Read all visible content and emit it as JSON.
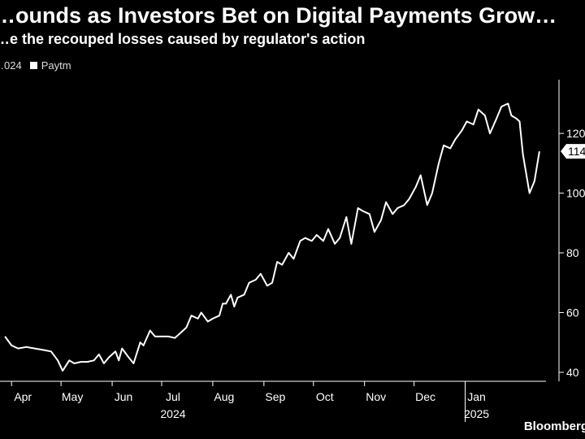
{
  "header": {
    "title": "…ounds as Investors Bet on Digital Payments Grow…",
    "subtitle": "…e the recouped losses caused by regulator's action"
  },
  "legend": {
    "prev_label": "…024",
    "series_label": "Paytm"
  },
  "source": "Bloomberg",
  "colors": {
    "background": "#000000",
    "line": "#ffffff",
    "text": "#ffffff"
  },
  "chart_data": {
    "type": "line",
    "series": [
      {
        "name": "Paytm",
        "points": [
          [
            "2024-03-28",
            52
          ],
          [
            "2024-04-01",
            49
          ],
          [
            "2024-04-05",
            48
          ],
          [
            "2024-04-10",
            48.5
          ],
          [
            "2024-04-15",
            48
          ],
          [
            "2024-04-20",
            47.5
          ],
          [
            "2024-04-25",
            47
          ],
          [
            "2024-04-29",
            44
          ],
          [
            "2024-05-02",
            40.5
          ],
          [
            "2024-05-06",
            44
          ],
          [
            "2024-05-09",
            43
          ],
          [
            "2024-05-13",
            43.5
          ],
          [
            "2024-05-17",
            43.5
          ],
          [
            "2024-05-21",
            44
          ],
          [
            "2024-05-24",
            46
          ],
          [
            "2024-05-27",
            43
          ],
          [
            "2024-05-30",
            45
          ],
          [
            "2024-06-03",
            47
          ],
          [
            "2024-06-05",
            44
          ],
          [
            "2024-06-07",
            48
          ],
          [
            "2024-06-11",
            45
          ],
          [
            "2024-06-14",
            43
          ],
          [
            "2024-06-18",
            50
          ],
          [
            "2024-06-20",
            49
          ],
          [
            "2024-06-24",
            54
          ],
          [
            "2024-06-27",
            52
          ],
          [
            "2024-07-01",
            52
          ],
          [
            "2024-07-05",
            52
          ],
          [
            "2024-07-09",
            51.5
          ],
          [
            "2024-07-12",
            53
          ],
          [
            "2024-07-16",
            55
          ],
          [
            "2024-07-19",
            59
          ],
          [
            "2024-07-23",
            58
          ],
          [
            "2024-07-25",
            60
          ],
          [
            "2024-07-29",
            57
          ],
          [
            "2024-08-01",
            58
          ],
          [
            "2024-08-05",
            59
          ],
          [
            "2024-08-07",
            63
          ],
          [
            "2024-08-09",
            63
          ],
          [
            "2024-08-12",
            66
          ],
          [
            "2024-08-14",
            62
          ],
          [
            "2024-08-16",
            65
          ],
          [
            "2024-08-20",
            66
          ],
          [
            "2024-08-23",
            70
          ],
          [
            "2024-08-27",
            71
          ],
          [
            "2024-08-30",
            73
          ],
          [
            "2024-09-03",
            69
          ],
          [
            "2024-09-06",
            70
          ],
          [
            "2024-09-09",
            77
          ],
          [
            "2024-09-12",
            76
          ],
          [
            "2024-09-16",
            80
          ],
          [
            "2024-09-19",
            78
          ],
          [
            "2024-09-23",
            84
          ],
          [
            "2024-09-26",
            85
          ],
          [
            "2024-09-30",
            84
          ],
          [
            "2024-10-03",
            86
          ],
          [
            "2024-10-07",
            84
          ],
          [
            "2024-10-10",
            88
          ],
          [
            "2024-10-14",
            83
          ],
          [
            "2024-10-17",
            85
          ],
          [
            "2024-10-21",
            92
          ],
          [
            "2024-10-24",
            83
          ],
          [
            "2024-10-28",
            95
          ],
          [
            "2024-10-31",
            94
          ],
          [
            "2024-11-04",
            93
          ],
          [
            "2024-11-07",
            87
          ],
          [
            "2024-11-11",
            91
          ],
          [
            "2024-11-14",
            97
          ],
          [
            "2024-11-18",
            93
          ],
          [
            "2024-11-21",
            95
          ],
          [
            "2024-11-25",
            96
          ],
          [
            "2024-11-28",
            98
          ],
          [
            "2024-12-02",
            102
          ],
          [
            "2024-12-05",
            106
          ],
          [
            "2024-12-09",
            96
          ],
          [
            "2024-12-12",
            100
          ],
          [
            "2024-12-16",
            110
          ],
          [
            "2024-12-19",
            116
          ],
          [
            "2024-12-23",
            115
          ],
          [
            "2024-12-26",
            118
          ],
          [
            "2024-12-30",
            121
          ],
          [
            "2025-01-02",
            124
          ],
          [
            "2025-01-06",
            123
          ],
          [
            "2025-01-09",
            128
          ],
          [
            "2025-01-13",
            126
          ],
          [
            "2025-01-16",
            120
          ],
          [
            "2025-01-20",
            125
          ],
          [
            "2025-01-23",
            129
          ],
          [
            "2025-01-27",
            130
          ],
          [
            "2025-01-29",
            126
          ],
          [
            "2025-02-01",
            125
          ],
          [
            "2025-02-03",
            124
          ],
          [
            "2025-02-05",
            113
          ],
          [
            "2025-02-09",
            100
          ],
          [
            "2025-02-12",
            104
          ],
          [
            "2025-02-15",
            114
          ]
        ]
      }
    ],
    "ylim": [
      37,
      138
    ],
    "xlim": [
      "2024-03-25",
      "2025-02-19"
    ],
    "y_ticks": [
      {
        "value": 40,
        "label": "40"
      },
      {
        "value": 60,
        "label": "60"
      },
      {
        "value": 80,
        "label": "80"
      },
      {
        "value": 100,
        "label": "100"
      },
      {
        "value": 120,
        "label": "120"
      }
    ],
    "x_ticks": [
      {
        "date": "2024-04-01",
        "label": "Apr"
      },
      {
        "date": "2024-05-01",
        "label": "May"
      },
      {
        "date": "2024-06-01",
        "label": "Jun"
      },
      {
        "date": "2024-07-01",
        "label": "Jul"
      },
      {
        "date": "2024-08-01",
        "label": "Aug"
      },
      {
        "date": "2024-09-01",
        "label": "Sep"
      },
      {
        "date": "2024-10-01",
        "label": "Oct"
      },
      {
        "date": "2024-11-01",
        "label": "Nov"
      },
      {
        "date": "2024-12-01",
        "label": "Dec"
      },
      {
        "date": "2025-01-01",
        "label": "Jan"
      }
    ],
    "year_labels": [
      {
        "date": "2024-07-01",
        "label": "2024"
      },
      {
        "date": "2025-01-01",
        "label": "2025"
      }
    ],
    "last_value_label": "114",
    "grid": false
  }
}
